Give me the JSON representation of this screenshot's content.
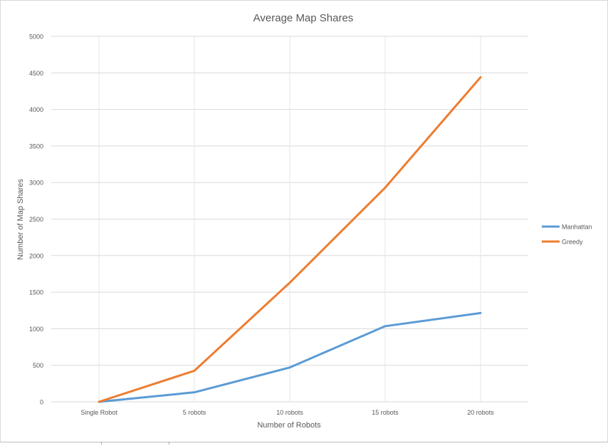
{
  "chart_data": {
    "type": "line",
    "title": "Average Map Shares",
    "xlabel": "Number of Robots",
    "ylabel": "Number of Map Shares",
    "categories": [
      "Single Robot",
      "5 robots",
      "10 robots",
      "15 robots",
      "20 robots"
    ],
    "yticks": [
      "0",
      "500",
      "1000",
      "1500",
      "2000",
      "2500",
      "3000",
      "3500",
      "4000",
      "4500",
      "5000"
    ],
    "ylim": [
      0,
      5000
    ],
    "grid": true,
    "legend_position": "right",
    "series": [
      {
        "name": "Manhattan",
        "color": "#5b9bd5",
        "values": [
          0,
          130,
          470,
          1035,
          1215
        ]
      },
      {
        "name": "Greedy",
        "color": "#ed7d31",
        "values": [
          0,
          425,
          1630,
          2930,
          4440
        ]
      }
    ]
  }
}
